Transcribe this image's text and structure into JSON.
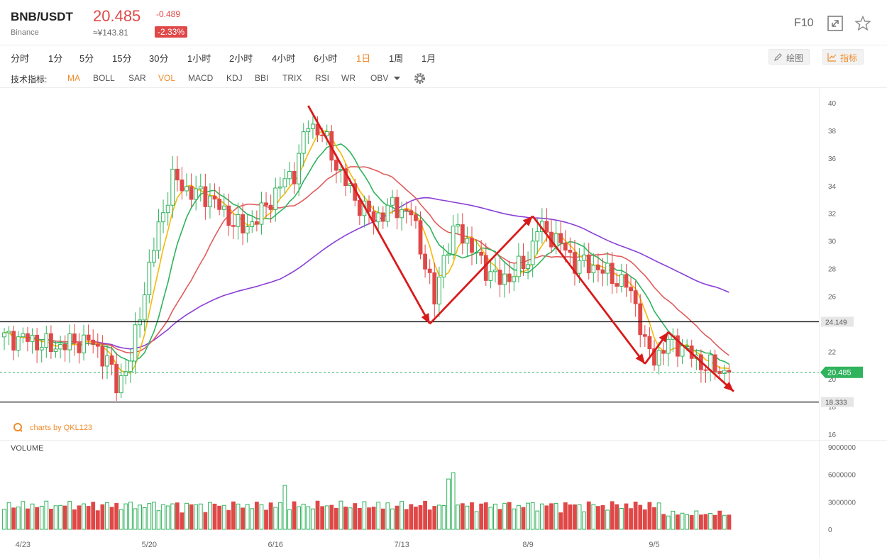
{
  "header": {
    "pair": "BNB/USDT",
    "exchange": "Binance",
    "price": "20.485",
    "cny_price": "≈¥143.81",
    "change": "-0.489",
    "change_pct": "-2.33%",
    "f10": "F10"
  },
  "timeframes": [
    {
      "label": "分时"
    },
    {
      "label": "1分"
    },
    {
      "label": "5分"
    },
    {
      "label": "15分"
    },
    {
      "label": "30分"
    },
    {
      "label": "1小时"
    },
    {
      "label": "2小时"
    },
    {
      "label": "4小时"
    },
    {
      "label": "6小时"
    },
    {
      "label": "1日",
      "active": true
    },
    {
      "label": "1周"
    },
    {
      "label": "1月"
    }
  ],
  "tools": {
    "draw": "绘图",
    "indicator": "指标"
  },
  "indicator_bar": {
    "label": "技术指标:",
    "items": [
      {
        "label": "MA",
        "active": true
      },
      {
        "label": "BOLL"
      },
      {
        "label": "SAR"
      },
      {
        "label": "VOL",
        "active": true
      },
      {
        "label": "MACD"
      },
      {
        "label": "KDJ"
      },
      {
        "label": "BBI"
      },
      {
        "label": "TRIX"
      },
      {
        "label": "RSI"
      },
      {
        "label": "WR"
      },
      {
        "label": "OBV"
      }
    ]
  },
  "watermark": "charts by QKL123",
  "volume_label": "VOLUME",
  "colors": {
    "up": "#2fb35c",
    "down": "#e04848",
    "ma5": "#f5b90a",
    "ma10": "#2fb35c",
    "ma20": "#e05c5c",
    "ma60": "#8a3fd6",
    "arrow": "#d91a1a",
    "accent": "#f08c2a"
  },
  "chart_data": {
    "type": "candlestick",
    "y_ticks": [
      "40",
      "38",
      "36",
      "34",
      "32",
      "30",
      "28",
      "26",
      "22",
      "20",
      "18",
      "16"
    ],
    "ylim": [
      16,
      40
    ],
    "x_labels": [
      {
        "label": "4/23",
        "index": 4
      },
      {
        "label": "5/20",
        "index": 31
      },
      {
        "label": "6/16",
        "index": 58
      },
      {
        "label": "7/13",
        "index": 85
      },
      {
        "label": "8/9",
        "index": 112
      },
      {
        "label": "9/5",
        "index": 139
      }
    ],
    "volume_ticks": [
      "9000000",
      "6000000",
      "3000000",
      "0"
    ],
    "volume_max": 9000000,
    "levels": [
      {
        "value": 24.149,
        "label": "24.149",
        "kind": "resistance"
      },
      {
        "value": 18.333,
        "label": "18.333",
        "kind": "support"
      }
    ],
    "current": {
      "value": 20.485,
      "label": "20.485"
    },
    "trend_arrows": [
      [
        {
          "i": 65,
          "v": 39.8
        },
        {
          "i": 91,
          "v": 24.0
        }
      ],
      [
        {
          "i": 91,
          "v": 24.0
        },
        {
          "i": 113,
          "v": 31.8
        }
      ],
      [
        {
          "i": 113,
          "v": 31.8
        },
        {
          "i": 137,
          "v": 21.1
        }
      ],
      [
        {
          "i": 137,
          "v": 21.1
        },
        {
          "i": 142,
          "v": 23.4
        }
      ],
      [
        {
          "i": 142,
          "v": 23.4
        },
        {
          "i": 156,
          "v": 19.1
        }
      ]
    ]
  }
}
